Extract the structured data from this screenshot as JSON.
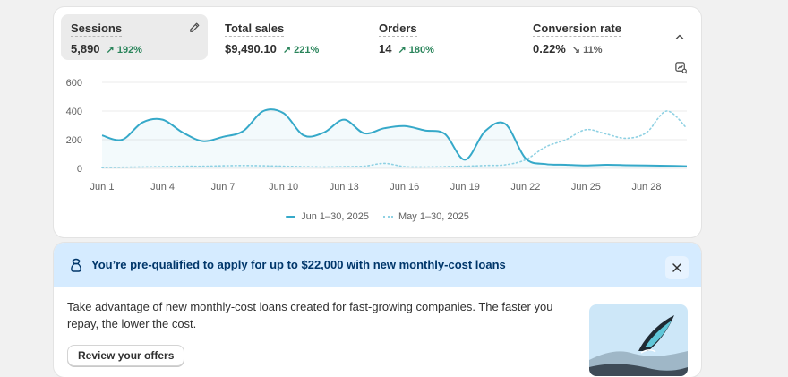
{
  "metrics": [
    {
      "label": "Sessions",
      "value": "5,890",
      "change": "192%",
      "direction": "up",
      "active": true
    },
    {
      "label": "Total sales",
      "value": "$9,490.10",
      "change": "221%",
      "direction": "up",
      "active": false
    },
    {
      "label": "Orders",
      "value": "14",
      "change": "180%",
      "direction": "up",
      "active": false
    },
    {
      "label": "Conversion rate",
      "value": "0.22%",
      "change": "11%",
      "direction": "down",
      "active": false
    }
  ],
  "icons": {
    "edit": "pencil-icon",
    "collapse": "chevron-up-icon",
    "chart_settings": "chart-settings-icon",
    "banner": "money-icon",
    "dismiss": "close-icon",
    "illustration": "loan-illustration"
  },
  "colors": {
    "current_series": "#36a9c9",
    "previous_series": "#8fd1e3",
    "positive": "#29845a",
    "banner_bg": "#d5ebff",
    "banner_text": "#00366a"
  },
  "chart_data": {
    "type": "line",
    "ylim": [
      0,
      600
    ],
    "y_ticks": [
      "600",
      "400",
      "200",
      "0"
    ],
    "x_ticks": [
      "Jun 1",
      "Jun 4",
      "Jun 7",
      "Jun 10",
      "Jun 13",
      "Jun 16",
      "Jun 19",
      "Jun 22",
      "Jun 25",
      "Jun 28"
    ],
    "grid": true,
    "legend_position": "bottom",
    "x": [
      1,
      2,
      3,
      4,
      5,
      6,
      7,
      8,
      9,
      10,
      11,
      12,
      13,
      14,
      15,
      16,
      17,
      18,
      19,
      20,
      21,
      22,
      23,
      24,
      25,
      26,
      27,
      28,
      29,
      30
    ],
    "series": [
      {
        "name": "Jun 1–30, 2025",
        "style": "solid",
        "values": [
          230,
          200,
          320,
          340,
          250,
          190,
          220,
          260,
          400,
          385,
          230,
          250,
          340,
          245,
          280,
          295,
          265,
          240,
          60,
          260,
          310,
          70,
          30,
          25,
          20,
          25,
          22,
          20,
          18,
          15
        ]
      },
      {
        "name": "May 1–30, 2025",
        "style": "dotted",
        "values": [
          5,
          8,
          10,
          12,
          15,
          15,
          18,
          20,
          18,
          15,
          12,
          10,
          12,
          15,
          35,
          12,
          10,
          12,
          15,
          20,
          25,
          60,
          150,
          200,
          270,
          240,
          210,
          250,
          400,
          280
        ]
      }
    ]
  },
  "loan": {
    "title": "You’re pre-qualified to apply for up to $22,000 with new monthly-cost loans",
    "body": "Take advantage of new monthly-cost loans created for fast-growing companies. The faster you repay, the lower the cost.",
    "cta": "Review your offers"
  }
}
